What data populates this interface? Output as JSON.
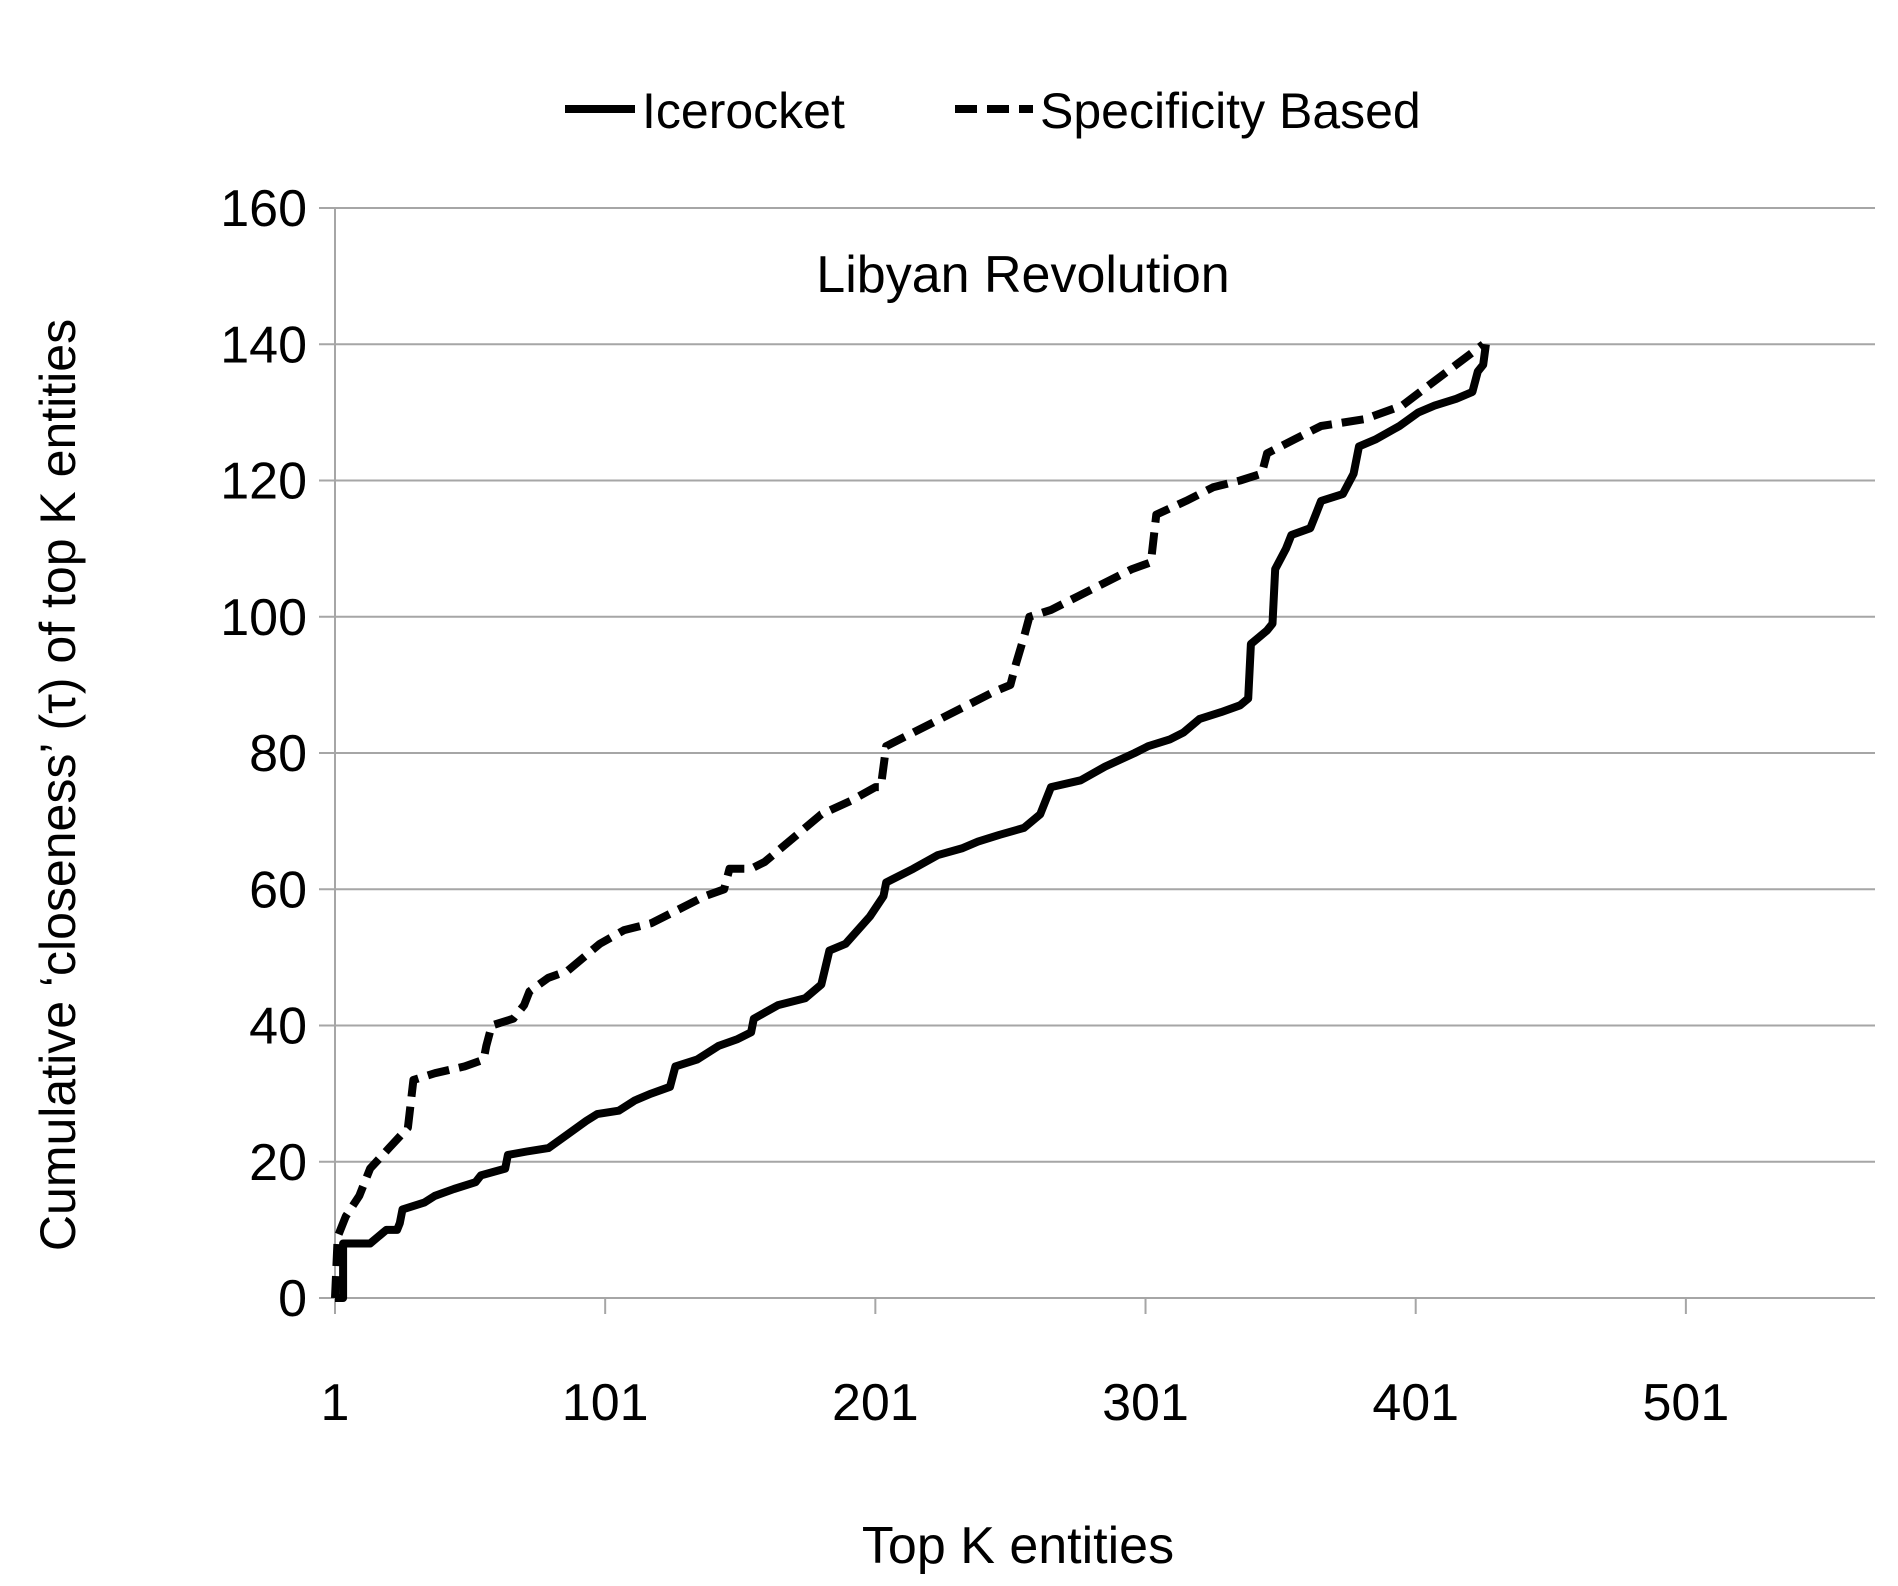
{
  "chart_data": {
    "type": "line",
    "title": "Libyan Revolution",
    "xlabel": "Top K entities",
    "ylabel": "Cumulative ‘closeness’ (τ) of top K entities",
    "xlim": [
      1,
      571
    ],
    "ylim": [
      0,
      160
    ],
    "x_ticks": [
      "1",
      "101",
      "201",
      "301",
      "401",
      "501"
    ],
    "y_ticks": [
      "0",
      "20",
      "40",
      "60",
      "80",
      "100",
      "120",
      "140",
      "160"
    ],
    "grid": true,
    "legend_position": "top",
    "series": [
      {
        "name": "Icerocket",
        "style": "solid",
        "color": "#000000",
        "points": [
          [
            1,
            0
          ],
          [
            4,
            0
          ],
          [
            4,
            8
          ],
          [
            14,
            8
          ],
          [
            17,
            9
          ],
          [
            20,
            10
          ],
          [
            24,
            10
          ],
          [
            25,
            11
          ],
          [
            26,
            13
          ],
          [
            34,
            14
          ],
          [
            38,
            15
          ],
          [
            45,
            16
          ],
          [
            53,
            17
          ],
          [
            55,
            18
          ],
          [
            64,
            19
          ],
          [
            65,
            21
          ],
          [
            72,
            21.5
          ],
          [
            80,
            22
          ],
          [
            87,
            24
          ],
          [
            94,
            26
          ],
          [
            98,
            27
          ],
          [
            106,
            27.5
          ],
          [
            112,
            29
          ],
          [
            118,
            30
          ],
          [
            125,
            31
          ],
          [
            127,
            34
          ],
          [
            135,
            35
          ],
          [
            143,
            37
          ],
          [
            150,
            38
          ],
          [
            155,
            39
          ],
          [
            156,
            41
          ],
          [
            165,
            43
          ],
          [
            175,
            44
          ],
          [
            181,
            46
          ],
          [
            184,
            51
          ],
          [
            190,
            52
          ],
          [
            199,
            56
          ],
          [
            204,
            59
          ],
          [
            205,
            61
          ],
          [
            215,
            63
          ],
          [
            224,
            65
          ],
          [
            233,
            66
          ],
          [
            239,
            67
          ],
          [
            247,
            68
          ],
          [
            256,
            69
          ],
          [
            262,
            71
          ],
          [
            264,
            73
          ],
          [
            266,
            75
          ],
          [
            277,
            76
          ],
          [
            286,
            78
          ],
          [
            297,
            80
          ],
          [
            302,
            81
          ],
          [
            310,
            82
          ],
          [
            315,
            83
          ],
          [
            321,
            85
          ],
          [
            329,
            86
          ],
          [
            336,
            87
          ],
          [
            339,
            88
          ],
          [
            340,
            96
          ],
          [
            346,
            98
          ],
          [
            348,
            99
          ],
          [
            349,
            107
          ],
          [
            353,
            110
          ],
          [
            355,
            112
          ],
          [
            362,
            113
          ],
          [
            364,
            115
          ],
          [
            366,
            117
          ],
          [
            374,
            118
          ],
          [
            378,
            121
          ],
          [
            380,
            125
          ],
          [
            386,
            126
          ],
          [
            395,
            128
          ],
          [
            402,
            130
          ],
          [
            408,
            131
          ],
          [
            416,
            132
          ],
          [
            422,
            133
          ],
          [
            424,
            136
          ],
          [
            426,
            137
          ],
          [
            427,
            140
          ]
        ]
      },
      {
        "name": "Specificity Based",
        "style": "dashed",
        "color": "#000000",
        "points": [
          [
            1,
            0
          ],
          [
            2,
            9
          ],
          [
            5,
            12
          ],
          [
            10,
            15
          ],
          [
            14,
            19
          ],
          [
            21,
            22
          ],
          [
            28,
            25
          ],
          [
            30,
            32
          ],
          [
            38,
            33
          ],
          [
            49,
            34
          ],
          [
            56,
            35
          ],
          [
            57,
            37
          ],
          [
            59,
            40
          ],
          [
            67,
            41
          ],
          [
            71,
            43
          ],
          [
            73,
            45
          ],
          [
            80,
            47
          ],
          [
            87,
            48
          ],
          [
            93,
            50
          ],
          [
            99,
            52
          ],
          [
            108,
            54
          ],
          [
            118,
            55
          ],
          [
            128,
            57
          ],
          [
            138,
            59
          ],
          [
            145,
            60
          ],
          [
            147,
            63
          ],
          [
            155,
            63
          ],
          [
            160,
            64
          ],
          [
            172,
            68
          ],
          [
            181,
            71
          ],
          [
            192,
            73
          ],
          [
            201,
            75
          ],
          [
            203,
            75
          ],
          [
            205,
            81
          ],
          [
            215,
            83
          ],
          [
            225,
            85
          ],
          [
            235,
            87
          ],
          [
            245,
            89
          ],
          [
            251,
            90
          ],
          [
            253,
            93
          ],
          [
            256,
            97
          ],
          [
            258,
            100
          ],
          [
            266,
            101
          ],
          [
            276,
            103
          ],
          [
            286,
            105
          ],
          [
            296,
            107
          ],
          [
            303,
            108
          ],
          [
            305,
            115
          ],
          [
            316,
            117
          ],
          [
            326,
            119
          ],
          [
            336,
            120
          ],
          [
            344,
            121
          ],
          [
            346,
            124
          ],
          [
            356,
            126
          ],
          [
            366,
            128
          ],
          [
            382,
            129
          ],
          [
            396,
            131
          ],
          [
            406,
            134
          ],
          [
            416,
            137
          ],
          [
            426,
            140
          ]
        ]
      }
    ]
  }
}
